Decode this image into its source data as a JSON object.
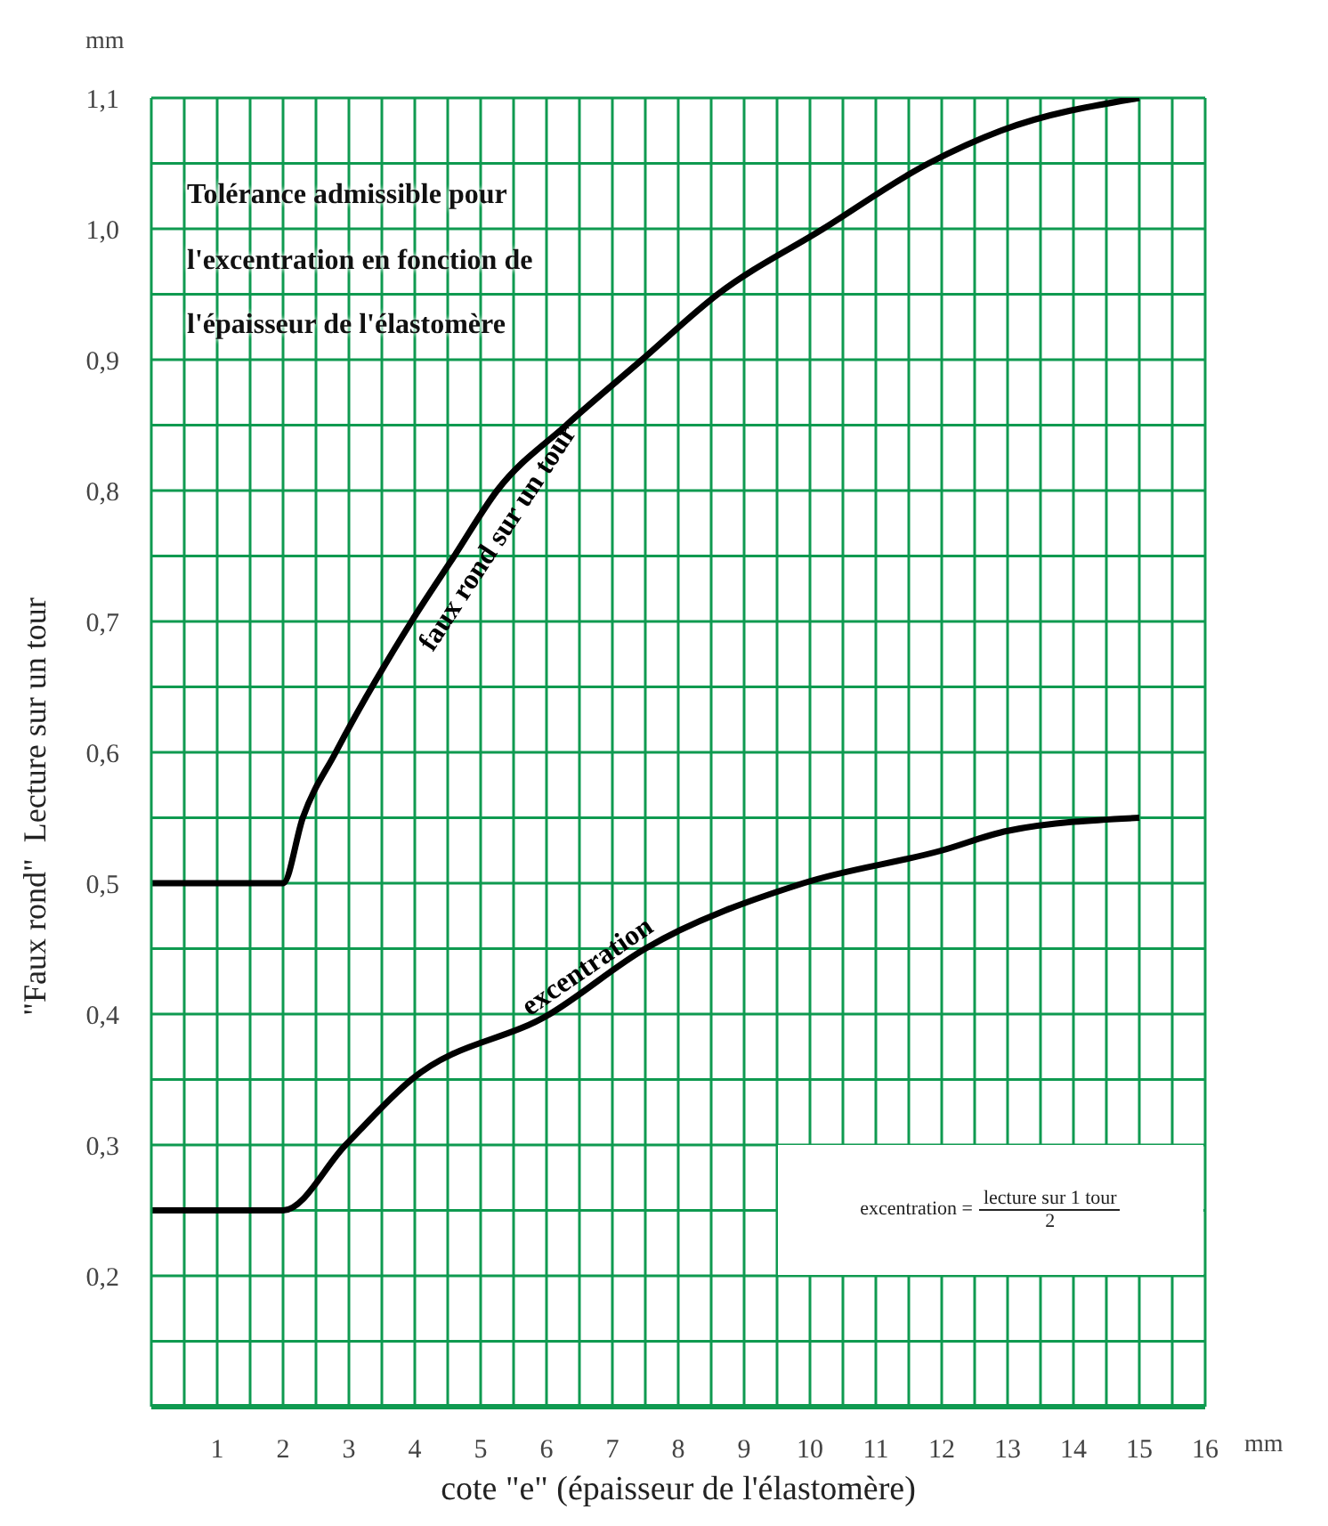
{
  "chart_data": {
    "type": "line",
    "title": "Tolérance admissible pour l'excentration en fonction de l'épaisseur de l'élastomère",
    "xlabel": "cote \"e\" (épaisseur de l'élastomère)",
    "ylabel": "\"Faux rond\"  Lecture sur un tour",
    "annotations": [
      "mm",
      "mm",
      "excentration =",
      "lecture sur 1 tour",
      "2"
    ],
    "series": [
      {
        "name": "faux rond sur un tour",
        "color": "#000000",
        "x": [
          0,
          2,
          2.3,
          2.8,
          3.95,
          4.6,
          5.25,
          6.3,
          7.45,
          8.6,
          10.2,
          11.8,
          12.9,
          15
        ],
        "values": [
          0.5,
          0.5,
          0.55,
          0.6,
          0.7,
          0.75,
          0.8,
          0.85,
          0.9,
          0.95,
          1.0,
          1.05,
          1.075,
          1.1
        ]
      },
      {
        "name": "excentration",
        "color": "#000000",
        "x": [
          0,
          2,
          2.95,
          3.95,
          6.05,
          7.5,
          9.9,
          12,
          13,
          15
        ],
        "values": [
          0.25,
          0.25,
          0.3,
          0.35,
          0.4,
          0.45,
          0.5,
          0.525,
          0.54,
          0.55
        ]
      }
    ],
    "xlim": [
      0,
      16
    ],
    "xticks": [
      {
        "value": 0.5,
        "label": null
      },
      1,
      {
        "value": 1.5,
        "label": null
      },
      2,
      {
        "value": 2.5,
        "label": null
      },
      3,
      {
        "value": 3.5,
        "label": null
      },
      4,
      {
        "value": 4.5,
        "label": null
      },
      5,
      {
        "value": 5.5,
        "label": null
      },
      6,
      {
        "value": 6.5,
        "label": null
      },
      7,
      {
        "value": 7.5,
        "label": null
      },
      8,
      {
        "value": 8.5,
        "label": null
      },
      9,
      {
        "value": 9.5,
        "label": null
      },
      10,
      {
        "value": 10.5,
        "label": null
      },
      11,
      {
        "value": 11.5,
        "label": null
      },
      12,
      {
        "value": 12.5,
        "label": null
      },
      13,
      {
        "value": 13.5,
        "label": null
      },
      14,
      {
        "value": 14.5,
        "label": null
      },
      15,
      {
        "value": 15.5,
        "label": null
      },
      16
    ],
    "ylim": [
      0.1,
      1.1
    ],
    "yticks": [
      {
        "value": 0.15,
        "label": null
      },
      {
        "value": 0.2,
        "label": "0,2"
      },
      {
        "value": 0.25,
        "label": null
      },
      {
        "value": 0.3,
        "label": "0,3"
      },
      {
        "value": 0.35,
        "label": null
      },
      {
        "value": 0.4,
        "label": "0,4"
      },
      {
        "value": 0.45,
        "label": null
      },
      {
        "value": 0.5,
        "label": "0,5"
      },
      {
        "value": 0.55,
        "label": null
      },
      {
        "value": 0.6,
        "label": "0,6"
      },
      {
        "value": 0.65,
        "label": null
      },
      {
        "value": 0.7,
        "label": "0,7"
      },
      {
        "value": 0.75,
        "label": null
      },
      {
        "value": 0.8,
        "label": "0,8"
      },
      {
        "value": 0.85,
        "label": null
      },
      {
        "value": 0.9,
        "label": "0,9"
      },
      {
        "value": 0.95,
        "label": null
      },
      {
        "value": 1.0,
        "label": "1,0"
      },
      {
        "value": 1.05,
        "label": null
      },
      {
        "value": 1.1,
        "label": "1,1"
      }
    ],
    "grid": true,
    "marker": "none",
    "line_style": "solid",
    "legend": false
  }
}
